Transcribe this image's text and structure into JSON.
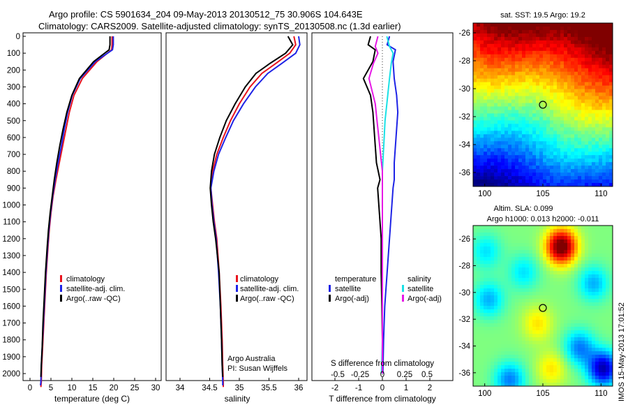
{
  "header": {
    "line1": "Argo profile: CS 5901634_204 09-May-2013 20130512_75 30.906S 104.643E",
    "line2": "Climatology: CARS2009. Satellite-adjusted climatology: synTS_20130508.nc (1.3d earlier)"
  },
  "colors": {
    "climatology": "#e8141e",
    "satellite": "#1e23e6",
    "argo": "#000000",
    "salinity_sat": "#19e1e6",
    "salinity_argo": "#e619e6"
  },
  "depth_ticks": [
    0,
    100,
    200,
    300,
    400,
    500,
    600,
    700,
    800,
    900,
    1000,
    1100,
    1200,
    1300,
    1400,
    1500,
    1600,
    1700,
    1800,
    1900,
    2000
  ],
  "temp_panel": {
    "xlabel": "temperature (deg C)",
    "xticks": [
      "0",
      "5",
      "10",
      "15",
      "20",
      "25",
      "30"
    ],
    "legend": [
      "climatology",
      "satellite-adj. clim.",
      "Argo(..raw -QC)"
    ]
  },
  "sal_panel": {
    "xlabel": "salinity",
    "xticks": [
      "34",
      "34.5",
      "35",
      "35.5",
      "36"
    ],
    "legend": [
      "climatology",
      "satellite-adj. clim.",
      "Argo(..raw -QC)"
    ],
    "credit1": "Argo Australia",
    "credit2": "PI: Susan Wijffels"
  },
  "diff_panel": {
    "xlabel": "T difference from climatology",
    "top_label": "S difference from climatology",
    "xticks": [
      "-2",
      "-1",
      "0",
      "1",
      "2"
    ],
    "s_ticks": [
      "-0.5",
      "-0.25",
      "0",
      "0.25",
      "0.5"
    ],
    "legend_temp_title": "temperature",
    "legend_sal_title": "salinity",
    "legend_temp": [
      "satellite",
      "Argo(-adj)"
    ],
    "legend_sal": [
      "satellite",
      "Argo(-adj)"
    ]
  },
  "sst_map": {
    "title": "sat. SST: 19.5 Argo: 19.2",
    "yticks": [
      "-26",
      "-28",
      "-30",
      "-32",
      "-34",
      "-36"
    ],
    "xticks": [
      "100",
      "105",
      "110"
    ]
  },
  "sla_map": {
    "title1": "Altim. SLA: 0.099",
    "title2": "Argo h1000: 0.013 h2000: -0.011",
    "yticks": [
      "-26",
      "-28",
      "-30",
      "-32",
      "-34",
      "-36"
    ],
    "xticks": [
      "100",
      "105",
      "110"
    ]
  },
  "stamp": "IMOS 15-May-2013 17:01:52",
  "chart_data": [
    {
      "type": "line",
      "title": "",
      "xlabel": "temperature (deg C)",
      "ylabel": "",
      "xlim": [
        -2,
        32
      ],
      "ylim": [
        2070,
        -10
      ],
      "series": [
        {
          "name": "climatology",
          "x": [
            19.6,
            19.6,
            19.5,
            16.0,
            12.5,
            10.5,
            9.4,
            8.6,
            7.8,
            7.0,
            6.2,
            5.5,
            5.0,
            4.6,
            4.3,
            3.9,
            3.6,
            3.3,
            3.0,
            2.8,
            2.7,
            2.6
          ],
          "y": [
            0,
            50,
            80,
            150,
            250,
            350,
            450,
            550,
            650,
            750,
            850,
            950,
            1050,
            1150,
            1250,
            1400,
            1550,
            1700,
            1850,
            1950,
            2050,
            2080
          ]
        },
        {
          "name": "satellite-adj. clim.",
          "x": [
            19.9,
            19.9,
            19.7,
            15.6,
            12.0,
            10.1,
            9.0,
            8.2,
            7.5,
            6.7,
            6.0,
            5.4,
            4.9,
            4.5,
            4.2,
            3.8,
            3.5,
            3.2,
            2.9,
            2.7,
            2.6,
            2.5
          ],
          "y": [
            0,
            50,
            80,
            150,
            250,
            350,
            450,
            550,
            650,
            750,
            850,
            950,
            1050,
            1150,
            1250,
            1400,
            1550,
            1700,
            1850,
            1950,
            2050,
            2070
          ]
        },
        {
          "name": "Argo(..raw -QC)",
          "x": [
            19.1,
            19.1,
            18.9,
            15.2,
            11.8,
            10.0,
            8.8,
            7.9,
            7.1,
            6.4,
            5.8,
            5.3,
            4.8,
            4.4,
            4.1,
            3.7,
            3.4,
            3.1,
            2.9,
            2.7,
            2.6
          ],
          "y": [
            0,
            50,
            80,
            150,
            250,
            350,
            450,
            550,
            650,
            750,
            850,
            950,
            1050,
            1150,
            1250,
            1400,
            1550,
            1700,
            1850,
            1950,
            2020
          ]
        }
      ]
    },
    {
      "type": "line",
      "title": "",
      "xlabel": "salinity",
      "ylabel": "",
      "xlim": [
        33.75,
        36.1
      ],
      "ylim": [
        2070,
        -10
      ],
      "series": [
        {
          "name": "climatology",
          "x": [
            35.92,
            35.95,
            35.85,
            35.62,
            35.38,
            35.18,
            35.0,
            34.85,
            34.73,
            34.62,
            34.55,
            34.52,
            34.55,
            34.58,
            34.62,
            34.66,
            34.69,
            34.71,
            34.72,
            34.73,
            34.73
          ],
          "y": [
            0,
            50,
            100,
            160,
            220,
            300,
            400,
            500,
            600,
            700,
            800,
            900,
            1000,
            1100,
            1200,
            1400,
            1600,
            1800,
            1950,
            2050,
            2080
          ]
        },
        {
          "name": "satellite-adj. clim.",
          "x": [
            36.0,
            36.02,
            35.95,
            35.72,
            35.48,
            35.27,
            35.07,
            34.9,
            34.77,
            34.65,
            34.57,
            34.52,
            34.54,
            34.57,
            34.61,
            34.65,
            34.68,
            34.7,
            34.71,
            34.72,
            34.72
          ],
          "y": [
            0,
            50,
            100,
            160,
            220,
            300,
            400,
            500,
            600,
            700,
            800,
            900,
            1000,
            1100,
            1200,
            1400,
            1600,
            1800,
            1950,
            2050,
            2070
          ]
        },
        {
          "name": "Argo(..raw -QC)",
          "x": [
            35.82,
            35.9,
            35.78,
            35.52,
            35.28,
            35.1,
            34.93,
            34.78,
            34.67,
            34.58,
            34.53,
            34.51,
            34.53,
            34.56,
            34.6,
            34.66,
            34.68,
            34.7,
            34.71,
            34.72
          ],
          "y": [
            0,
            50,
            100,
            160,
            220,
            300,
            400,
            500,
            600,
            700,
            800,
            900,
            1000,
            1100,
            1200,
            1400,
            1600,
            1800,
            1950,
            2020
          ]
        }
      ]
    },
    {
      "type": "line",
      "title": "",
      "xlabel": "T difference from climatology",
      "ylabel": "",
      "xlim": [
        -2.2,
        2.2
      ],
      "ylim": [
        2070,
        -10
      ],
      "series": [
        {
          "name": "temperature satellite",
          "x": [
            0.3,
            0.2,
            0.55,
            0.45,
            0.5,
            0.6,
            0.65,
            0.6,
            0.55,
            0.5,
            0.5,
            0.45,
            0.4,
            0.35,
            0.3,
            0.2,
            0.1,
            0.05,
            0.02
          ],
          "y": [
            0,
            50,
            80,
            150,
            250,
            350,
            450,
            550,
            650,
            750,
            850,
            900,
            1000,
            1100,
            1200,
            1400,
            1600,
            1800,
            2000
          ]
        },
        {
          "name": "temperature Argo(-adj)",
          "x": [
            -0.5,
            -0.6,
            -0.3,
            -0.4,
            -0.8,
            -0.5,
            -0.4,
            -0.35,
            -0.3,
            -0.25,
            -0.1,
            -0.2,
            -0.15,
            -0.1,
            -0.05,
            -0.05,
            -0.02,
            0.0,
            0.0
          ],
          "y": [
            0,
            50,
            80,
            150,
            250,
            350,
            450,
            550,
            650,
            750,
            850,
            900,
            1000,
            1100,
            1200,
            1400,
            1600,
            1800,
            2000
          ]
        }
      ]
    },
    {
      "type": "line",
      "title": "",
      "xlabel": "S difference from climatology",
      "ylabel": "",
      "xlim": [
        -0.85,
        1.0
      ],
      "ylim": [
        2070,
        -10
      ],
      "series": [
        {
          "name": "salinity satellite",
          "x": [
            0.05,
            0.08,
            0.12,
            0.1,
            0.08,
            0.05,
            0.03,
            0.02,
            0.01,
            0.0,
            0.0,
            0.0,
            0.0,
            0.0,
            0.0,
            -0.01
          ],
          "y": [
            0,
            60,
            100,
            160,
            250,
            400,
            500,
            600,
            700,
            800,
            1000,
            1200,
            1400,
            1600,
            1800,
            2000
          ]
        },
        {
          "name": "salinity Argo(-adj)",
          "x": [
            -0.05,
            -0.08,
            -0.05,
            -0.1,
            -0.15,
            -0.08,
            -0.06,
            -0.04,
            -0.02,
            0.0,
            0.0,
            0.0,
            0.0,
            0.0,
            0.0,
            0.0
          ],
          "y": [
            0,
            60,
            100,
            160,
            250,
            400,
            500,
            600,
            700,
            800,
            1000,
            1200,
            1400,
            1600,
            1800,
            2000
          ]
        }
      ]
    },
    {
      "type": "heatmap",
      "title": "sat. SST: 19.5 Argo: 19.2",
      "xlim": [
        99,
        111
      ],
      "ylim": [
        -37,
        -25
      ],
      "marker": {
        "lon": 104.643,
        "lat": -30.906
      }
    },
    {
      "type": "heatmap",
      "title": "Altim. SLA: 0.099",
      "xlim": [
        99,
        111
      ],
      "ylim": [
        -37,
        -25
      ],
      "marker": {
        "lon": 104.643,
        "lat": -30.906
      }
    }
  ]
}
